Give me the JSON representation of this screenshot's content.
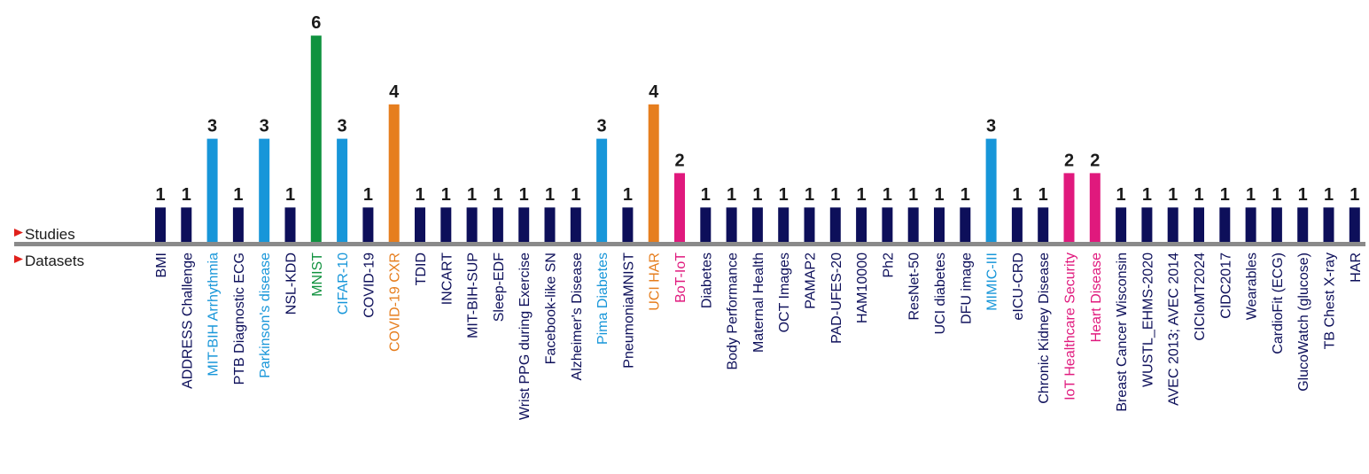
{
  "chart_data": {
    "type": "bar",
    "row_labels": {
      "top": "Studies",
      "bottom": "Datasets"
    },
    "marker_color": "#e0201b",
    "axis_color": "#8a8a8a",
    "ylim": [
      0,
      6
    ],
    "categories": [
      "BMI",
      "ADDRESS Challenge",
      "MIT-BIH Arrhythmia",
      "PTB Diagnostic ECG",
      "Parkinson's disease",
      "NSL-KDD",
      "MNIST",
      "CIFAR-10",
      "COVID-19",
      "COVID-19 CXR",
      "TDID",
      "INCART",
      "MIT-BIH-SUP",
      "Sleep-EDF",
      "Wrist PPG during Exercise",
      "Facebook-like SN",
      "Alzheimer's Disease",
      "Pima Diabetes",
      "PneumoniaMNIST",
      "UCI HAR",
      "BoT-IoT",
      "Diabetes",
      "Body Performance",
      "Maternal Health",
      "OCT Images",
      "PAMAP2",
      "PAD-UFES-20",
      "HAM10000",
      "Ph2",
      "ResNet-50",
      "UCI diabetes",
      "DFU image",
      "MIMIC-III",
      "eICU-CRD",
      "Chronic Kidney Disease",
      "IoT Healthcare Security",
      "Heart Disease",
      "Breast Cancer Wisconsin",
      "WUSTL_EHMS-2020",
      "AVEC 2013; AVEC 2014",
      "CICIoMT2024",
      "CIDC2017",
      "Wearables",
      "CardioFit (ECG)",
      "GlucoWatch (glucose)",
      "TB Chest X-ray",
      "HAR"
    ],
    "values": [
      1,
      1,
      3,
      1,
      3,
      1,
      6,
      3,
      1,
      4,
      1,
      1,
      1,
      1,
      1,
      1,
      1,
      3,
      1,
      4,
      2,
      1,
      1,
      1,
      1,
      1,
      1,
      1,
      1,
      1,
      1,
      1,
      3,
      1,
      1,
      2,
      2,
      1,
      1,
      1,
      1,
      1,
      1,
      1,
      1,
      1,
      1
    ],
    "value_labels": [
      "1",
      "1",
      "3",
      "1",
      "3",
      "1",
      "6",
      "3",
      "1",
      "4",
      "1",
      "1",
      "1",
      "1",
      "1",
      "1",
      "1",
      "3",
      "1",
      "4",
      "2",
      "1",
      "1",
      "1",
      "1",
      "1",
      "1",
      "1",
      "1",
      "1",
      "1",
      "1",
      "3",
      "1",
      "1",
      "2",
      "2",
      "1",
      "1",
      "1",
      "1",
      "1",
      "1",
      "1",
      "1",
      "1",
      "1"
    ],
    "colors": {
      "1": "#0d0f5a",
      "2": "#e0197d",
      "3": "#1796d9",
      "4": "#e67e1e",
      "6": "#10923f"
    }
  }
}
